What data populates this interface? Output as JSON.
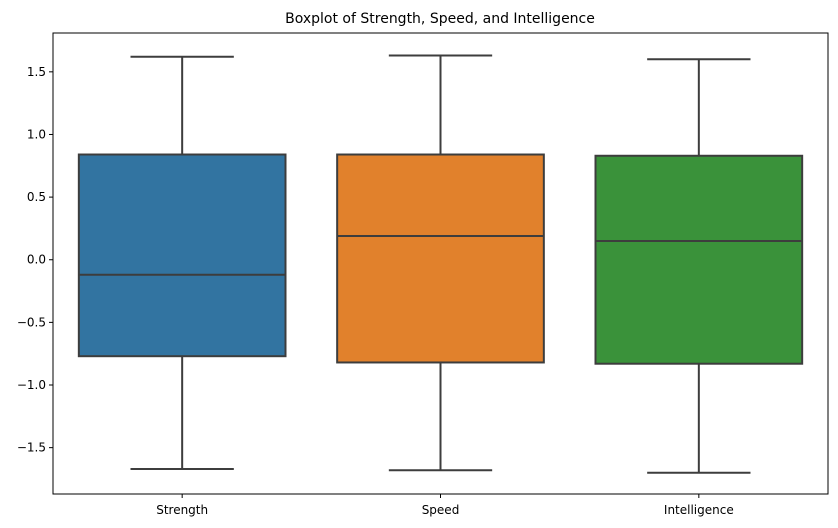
{
  "chart_data": {
    "type": "boxplot",
    "title": "Boxplot of Strength, Speed, and Intelligence",
    "xlabel": "",
    "ylabel": "",
    "ylim": [
      -1.87,
      1.81
    ],
    "yticks": [
      -1.5,
      -1.0,
      -0.5,
      0.0,
      0.5,
      1.0,
      1.5
    ],
    "ytick_labels": [
      "−1.5",
      "−1.0",
      "−0.5",
      "0.0",
      "0.5",
      "1.0",
      "1.5"
    ],
    "grid": false,
    "legend": false,
    "categories": [
      "Strength",
      "Speed",
      "Intelligence"
    ],
    "boxes": [
      {
        "category": "Strength",
        "color": "#3274a1",
        "whisker_low": -1.67,
        "q1": -0.77,
        "median": -0.12,
        "q3": 0.84,
        "whisker_high": 1.62
      },
      {
        "category": "Speed",
        "color": "#e1812c",
        "whisker_low": -1.68,
        "q1": -0.82,
        "median": 0.19,
        "q3": 0.84,
        "whisker_high": 1.63
      },
      {
        "category": "Intelligence",
        "color": "#3a923a",
        "whisker_low": -1.7,
        "q1": -0.83,
        "median": 0.15,
        "q3": 0.83,
        "whisker_high": 1.6
      }
    ]
  }
}
